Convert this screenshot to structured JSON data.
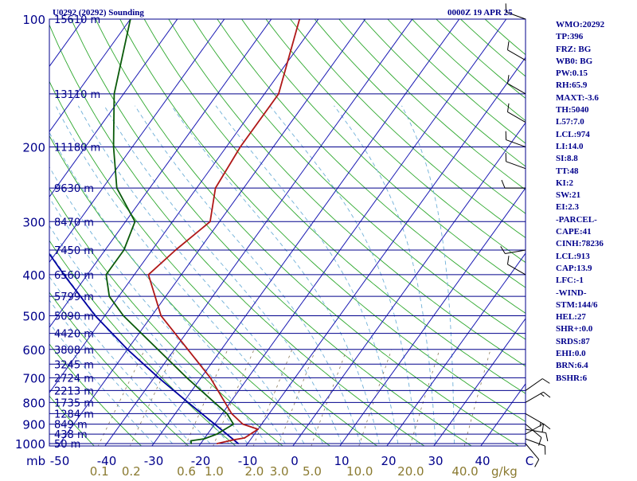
{
  "header": {
    "station": "U0292 (20292) Sounding",
    "time": "0000Z 19 APR 25"
  },
  "indices": [
    "WMO:20292",
    "TP:396",
    "FRZ: BG",
    "WB0: BG",
    "PW:0.15",
    "RH:65.9",
    "MAXT:-3.6",
    "TH:5040",
    "L57:7.0",
    "LCL:974",
    "LI:14.0",
    "SI:8.8",
    "TT:48",
    "KI:2",
    "SW:21",
    "EI:2.3",
    "-PARCEL-",
    "CAPE:41",
    "CINH:78236",
    "LCL:913",
    "CAP:13.9",
    "LFC:-1",
    "-WIND-",
    "STM:144/6",
    "HEL:27",
    "SHR+:0.0",
    "SRDS:87",
    "EHI:0.0",
    "BRN:6.4",
    "BSHR:6"
  ],
  "colors": {
    "isobar": "#00008b",
    "isotherm": "#1a1ab3",
    "dry_adiabat": "#2ea82e",
    "moist_adiabat": "#6fb0d8",
    "mixing_ratio": "#8a7a5a",
    "temperature": "#b01818",
    "dewpoint": "#0a5a0a",
    "parcel": "#0000a0",
    "frame": "#00008b",
    "axis_text": "#00008b",
    "mixing_text": "#8a7a30"
  },
  "chart_data": {
    "type": "skew-t",
    "pressure_unit": "mb",
    "temperature_unit": "C",
    "mixing_unit": "g/kg",
    "pressure_range": [
      1000,
      100
    ],
    "temperature_range": [
      -50,
      0
    ],
    "pressure_levels": [
      {
        "p": 100,
        "label": "100",
        "height": "15610 m"
      },
      {
        "p": 150,
        "label": "",
        "height": "13110 m"
      },
      {
        "p": 200,
        "label": "200",
        "height": "11180 m"
      },
      {
        "p": 250,
        "label": "",
        "height": "9630 m"
      },
      {
        "p": 300,
        "label": "300",
        "height": "8470 m"
      },
      {
        "p": 350,
        "label": "",
        "height": "7450 m"
      },
      {
        "p": 400,
        "label": "400",
        "height": "6560 m"
      },
      {
        "p": 450,
        "label": "",
        "height": "5799 m"
      },
      {
        "p": 500,
        "label": "500",
        "height": "5090 m"
      },
      {
        "p": 550,
        "label": "",
        "height": "4420 m"
      },
      {
        "p": 600,
        "label": "600",
        "height": "3808 m"
      },
      {
        "p": 650,
        "label": "",
        "height": "3245 m"
      },
      {
        "p": 700,
        "label": "700",
        "height": "2724 m"
      },
      {
        "p": 750,
        "label": "",
        "height": "2213 m"
      },
      {
        "p": 800,
        "label": "800",
        "height": "1735 m"
      },
      {
        "p": 850,
        "label": "",
        "height": "1284 m"
      },
      {
        "p": 900,
        "label": "900",
        "height": "849 m"
      },
      {
        "p": 950,
        "label": "",
        "height": "438 m"
      },
      {
        "p": 1000,
        "label": "1000",
        "height": "50 m"
      }
    ],
    "temperature_ticks": [
      {
        "t": -50,
        "label": "-50"
      },
      {
        "t": -40,
        "label": "-40"
      },
      {
        "t": -30,
        "label": "-30"
      },
      {
        "t": -20,
        "label": "-20"
      },
      {
        "t": -10,
        "label": "-10"
      },
      {
        "t": 0,
        "label": "0"
      },
      {
        "t": 10,
        "label": "10"
      },
      {
        "t": 20,
        "label": "20"
      },
      {
        "t": 30,
        "label": "30"
      },
      {
        "t": 40,
        "label": "40"
      },
      {
        "t": 50,
        "label": "C"
      }
    ],
    "mixing_ticks": [
      {
        "w": 0.1,
        "label": "0.1"
      },
      {
        "w": 0.2,
        "label": "0.2"
      },
      {
        "w": 0.6,
        "label": "0.6"
      },
      {
        "w": 1.0,
        "label": "1.0"
      },
      {
        "w": 2.0,
        "label": "2.0"
      },
      {
        "w": 3.0,
        "label": "3.0"
      },
      {
        "w": 5.0,
        "label": "5.0"
      },
      {
        "w": 10.0,
        "label": "10.0"
      },
      {
        "w": 20.0,
        "label": "20.0"
      },
      {
        "w": 40.0,
        "label": "40.0"
      }
    ],
    "mb_label": "mb",
    "gkg_label": "g/kg",
    "temperature": [
      {
        "p": 1000,
        "t": -16.5
      },
      {
        "p": 980,
        "t": -13.5
      },
      {
        "p": 970,
        "t": -11.5
      },
      {
        "p": 925,
        "t": -10
      },
      {
        "p": 900,
        "t": -14
      },
      {
        "p": 850,
        "t": -18
      },
      {
        "p": 700,
        "t": -28
      },
      {
        "p": 500,
        "t": -48
      },
      {
        "p": 400,
        "t": -57
      },
      {
        "p": 350,
        "t": -55
      },
      {
        "p": 300,
        "t": -52
      },
      {
        "p": 250,
        "t": -56
      },
      {
        "p": 200,
        "t": -57
      },
      {
        "p": 150,
        "t": -57
      },
      {
        "p": 100,
        "t": -64
      }
    ],
    "dewpoint": [
      {
        "p": 1000,
        "t": -22
      },
      {
        "p": 985,
        "t": -22.5
      },
      {
        "p": 975,
        "t": -20
      },
      {
        "p": 950,
        "t": -18
      },
      {
        "p": 900,
        "t": -16
      },
      {
        "p": 850,
        "t": -19
      },
      {
        "p": 700,
        "t": -33
      },
      {
        "p": 500,
        "t": -56
      },
      {
        "p": 450,
        "t": -62
      },
      {
        "p": 400,
        "t": -66
      },
      {
        "p": 350,
        "t": -66
      },
      {
        "p": 300,
        "t": -68
      },
      {
        "p": 250,
        "t": -77
      },
      {
        "p": 200,
        "t": -84
      },
      {
        "p": 150,
        "t": -92
      },
      {
        "p": 100,
        "t": -100
      }
    ],
    "parcel": [
      {
        "p": 1000,
        "t": -12
      },
      {
        "p": 900,
        "t": -20
      },
      {
        "p": 800,
        "t": -29
      },
      {
        "p": 700,
        "t": -39
      },
      {
        "p": 600,
        "t": -50
      },
      {
        "p": 500,
        "t": -62
      },
      {
        "p": 400,
        "t": -75
      },
      {
        "p": 300,
        "t": -91
      },
      {
        "p": 200,
        "t": -110
      },
      {
        "p": 100,
        "t": -140
      }
    ],
    "winds": [
      {
        "p": 1000,
        "dir": 140,
        "spd": 10
      },
      {
        "p": 975,
        "dir": 110,
        "spd": 10
      },
      {
        "p": 950,
        "dir": 60,
        "spd": 10
      },
      {
        "p": 925,
        "dir": 100,
        "spd": 10
      },
      {
        "p": 900,
        "dir": 130,
        "spd": 10
      },
      {
        "p": 850,
        "dir": 120,
        "spd": 15
      },
      {
        "p": 800,
        "dir": 60,
        "spd": 15
      },
      {
        "p": 750,
        "dir": 55,
        "spd": 10
      },
      {
        "p": 400,
        "dir": 300,
        "spd": 10
      },
      {
        "p": 350,
        "dir": 260,
        "spd": 10
      },
      {
        "p": 250,
        "dir": 270,
        "spd": 10
      },
      {
        "p": 225,
        "dir": 290,
        "spd": 10
      },
      {
        "p": 200,
        "dir": 290,
        "spd": 10
      },
      {
        "p": 175,
        "dir": 300,
        "spd": 10
      },
      {
        "p": 150,
        "dir": 300,
        "spd": 10
      },
      {
        "p": 125,
        "dir": 300,
        "spd": 10
      },
      {
        "p": 100,
        "dir": 290,
        "spd": 10
      }
    ]
  }
}
